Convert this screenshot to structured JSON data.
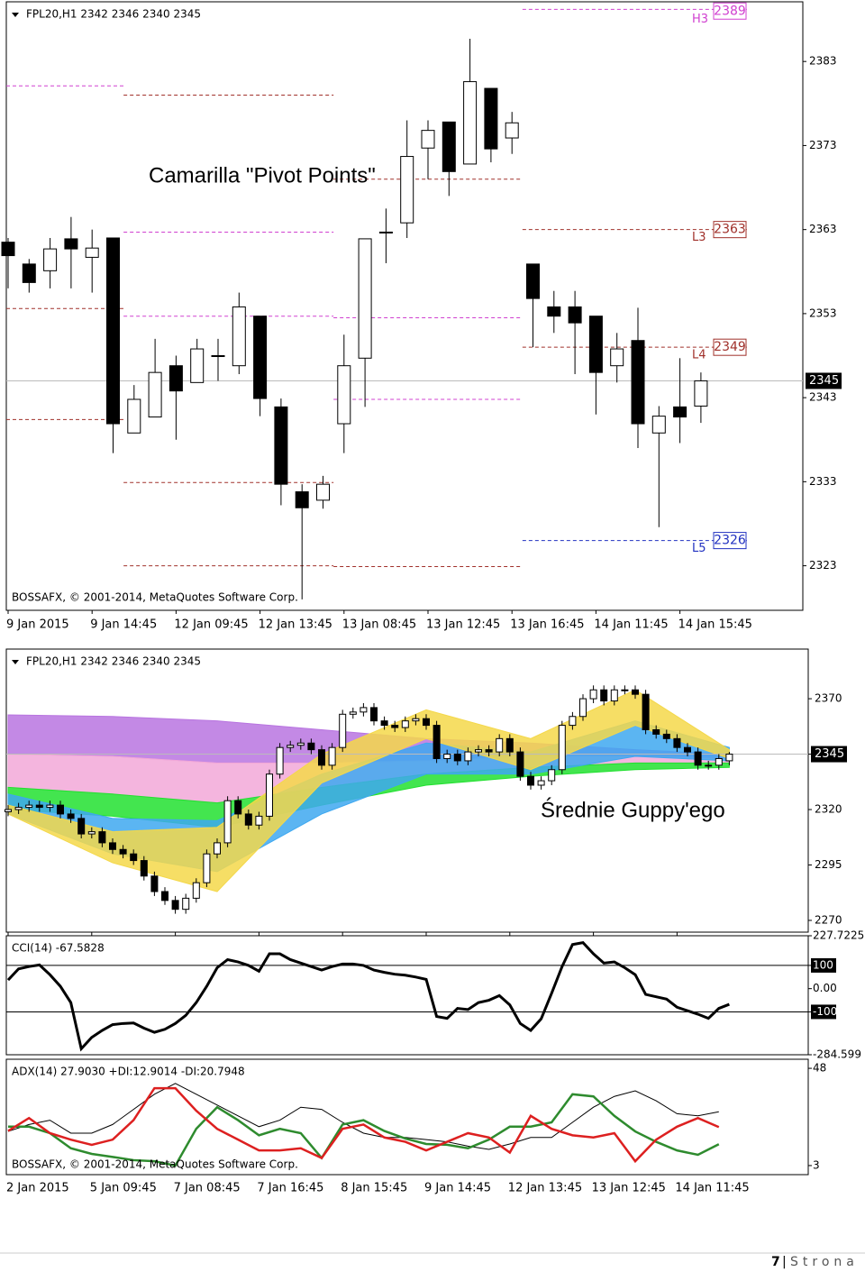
{
  "chart_data": [
    {
      "type": "candlestick",
      "title": "FPL20,H1  2342 2346 2340 2345",
      "annotation": "Camarilla \"Pivot Points\"",
      "copyright": "BOSSAFX, © 2001-2014, MetaQuotes Software Corp.",
      "categories": [
        "9 Jan 2015",
        null,
        null,
        null,
        "9 Jan 14:45",
        null,
        null,
        null,
        "12 Jan 09:45",
        null,
        null,
        null,
        "12 Jan 13:45",
        null,
        null,
        null,
        "13 Jan 08:45",
        null,
        null,
        null,
        "13 Jan 12:45",
        null,
        null,
        null,
        "13 Jan 16:45",
        null,
        null,
        null,
        "14 Jan 11:45",
        null,
        null,
        null,
        "14 Jan 15:45",
        null
      ],
      "open": [
        2361.5,
        2358.9,
        2358.1,
        2361.9,
        2359.7,
        2362,
        2338.8,
        2340.7,
        2346.8,
        2344.8,
        2348,
        2346.8,
        2352.7,
        2341.9,
        2331.8,
        2330.8,
        2339.9,
        2347.7,
        2362.7,
        2363.8,
        2372.7,
        2375.8,
        2370.8,
        2379.8,
        2373.9,
        2358.9,
        2353.8,
        2353.8,
        2352.7,
        2346.8,
        2349.8,
        2338.8,
        2341.9,
        2342
      ],
      "high": [
        2362,
        2359.5,
        2362,
        2364.5,
        2363,
        2362,
        2344.5,
        2350,
        2348,
        2350,
        2350,
        2355.5,
        2352.7,
        2342.9,
        2332.7,
        2333.7,
        2350.5,
        2361.9,
        2365.5,
        2376,
        2376,
        2375.8,
        2385.7,
        2379.8,
        2377,
        2358.9,
        2355.7,
        2355.7,
        2352.7,
        2350.7,
        2353.7,
        2342,
        2347.7,
        2346
      ],
      "low": [
        2356,
        2355.5,
        2356,
        2356,
        2355.5,
        2336.4,
        2338.8,
        2340.7,
        2338,
        2344.8,
        2345,
        2345.8,
        2340.8,
        2330.2,
        2319,
        2329.8,
        2336.4,
        2341.9,
        2359,
        2362,
        2369,
        2367,
        2370.8,
        2371,
        2372,
        2349,
        2350.7,
        2345.8,
        2341,
        2344.8,
        2337,
        2327.6,
        2337.6,
        2340
      ],
      "close": [
        2359.9,
        2356.7,
        2360.7,
        2360.7,
        2360.8,
        2339.9,
        2342.8,
        2346,
        2343.8,
        2348.8,
        2348,
        2353.8,
        2342.9,
        2332.7,
        2329.9,
        2332.7,
        2346.8,
        2361.9,
        2362.7,
        2371.7,
        2374.8,
        2369.9,
        2380.6,
        2372.6,
        2375.7,
        2354.8,
        2352.7,
        2351.9,
        2346,
        2348.8,
        2339.9,
        2340.8,
        2340.7,
        2345
      ],
      "ylim": [
        2317.7,
        2390.1
      ],
      "yticks": [
        2323,
        2333,
        2343,
        2353,
        2363,
        2373,
        2383
      ],
      "last_price": 2345,
      "sessions": [
        0,
        6,
        16,
        25
      ],
      "levels": [
        {
          "color": "#d040d0",
          "values": [
            2380.1,
            2362.7,
            2352.5,
            2389.2
          ]
        },
        {
          "color": "#d040d0",
          "values": [
            null,
            2352.7,
            2342.8,
            null
          ]
        },
        {
          "color": "#a0302a",
          "values": [
            2353.6,
            2379,
            2369,
            2363
          ]
        },
        {
          "color": "#a0302a",
          "values": [
            2340.4,
            2332.9,
            2322.9,
            2349
          ]
        },
        {
          "color": "#a0302a",
          "values": [
            null,
            2323,
            null,
            null
          ]
        },
        {
          "color": "#2030c0",
          "values": [
            null,
            null,
            null,
            2326
          ]
        }
      ],
      "level_labels": [
        {
          "name": "H3",
          "value": 2389,
          "color": "#d040d0"
        },
        {
          "name": "L3",
          "value": 2363,
          "color": "#a0302a"
        },
        {
          "name": "L4",
          "value": 2349,
          "color": "#a0302a"
        },
        {
          "name": "L5",
          "value": 2326,
          "color": "#2030c0"
        }
      ]
    },
    {
      "type": "candlestick",
      "title": "FPL20,H1  2342 2346 2340 2345",
      "annotation": "Średnie Guppy'ego",
      "categories": [
        "2 Jan 2015",
        null,
        null,
        null,
        null,
        null,
        null,
        null,
        "5 Jan 09:45",
        null,
        null,
        null,
        null,
        null,
        null,
        null,
        "7 Jan 08:45",
        null,
        null,
        null,
        null,
        null,
        null,
        null,
        "7 Jan 16:45",
        null,
        null,
        null,
        null,
        null,
        null,
        null,
        "8 Jan 15:45",
        null,
        null,
        null,
        null,
        null,
        null,
        null,
        "9 Jan 14:45",
        null,
        null,
        null,
        null,
        null,
        null,
        null,
        "12 Jan 13:45",
        null,
        null,
        null,
        null,
        null,
        null,
        null,
        "13 Jan 12:45",
        null,
        null,
        null,
        null,
        null,
        null,
        null,
        "14 Jan 11:45",
        null,
        null,
        null,
        null,
        null
      ],
      "open": [
        2319,
        2320,
        2321,
        2322,
        2321,
        2322,
        2318,
        2316,
        2309,
        2310,
        2305,
        2302,
        2300,
        2297,
        2290,
        2283,
        2279,
        2275,
        2280,
        2287,
        2300,
        2305,
        2324,
        2318,
        2313,
        2317,
        2336,
        2348,
        2349,
        2350,
        2347,
        2340,
        2348,
        2363,
        2364,
        2366,
        2360,
        2358,
        2357,
        2360,
        2361,
        2358,
        2343,
        2345,
        2342,
        2346,
        2347,
        2346,
        2352,
        2346,
        2335,
        2331,
        2333,
        2338,
        2358,
        2362,
        2370,
        2374,
        2369,
        2374,
        2374,
        2372,
        2356,
        2354,
        2352,
        2348,
        2346,
        2340,
        2340,
        2342
      ],
      "high": [
        2322,
        2323,
        2324,
        2324,
        2324,
        2324,
        2320,
        2318,
        2312,
        2312,
        2307,
        2304,
        2302,
        2299,
        2292,
        2285,
        2281,
        2282,
        2289,
        2302,
        2307,
        2326,
        2326,
        2320,
        2319,
        2338,
        2350,
        2351,
        2352,
        2352,
        2349,
        2350,
        2365,
        2366,
        2368,
        2368,
        2362,
        2360,
        2362,
        2363,
        2363,
        2360,
        2347,
        2347,
        2348,
        2349,
        2349,
        2354,
        2354,
        2348,
        2337,
        2335,
        2340,
        2360,
        2364,
        2372,
        2376,
        2376,
        2376,
        2376,
        2376,
        2374,
        2358,
        2356,
        2354,
        2350,
        2348,
        2342,
        2345,
        2346
      ],
      "low": [
        2317,
        2318,
        2319,
        2319,
        2319,
        2316,
        2314,
        2307,
        2307,
        2303,
        2300,
        2298,
        2295,
        2288,
        2281,
        2277,
        2273,
        2273,
        2278,
        2285,
        2298,
        2303,
        2316,
        2311,
        2311,
        2315,
        2334,
        2346,
        2347,
        2345,
        2338,
        2338,
        2346,
        2361,
        2362,
        2358,
        2356,
        2355,
        2355,
        2358,
        2356,
        2341,
        2341,
        2340,
        2340,
        2344,
        2344,
        2344,
        2344,
        2333,
        2329,
        2329,
        2331,
        2336,
        2356,
        2360,
        2368,
        2367,
        2367,
        2372,
        2370,
        2354,
        2352,
        2350,
        2346,
        2344,
        2338,
        2338,
        2338,
        2340
      ],
      "close": [
        2320,
        2321,
        2322,
        2321,
        2322,
        2318,
        2316,
        2309,
        2310,
        2305,
        2302,
        2300,
        2297,
        2290,
        2283,
        2279,
        2275,
        2280,
        2287,
        2300,
        2305,
        2324,
        2318,
        2313,
        2317,
        2336,
        2348,
        2349,
        2350,
        2347,
        2340,
        2348,
        2363,
        2364,
        2366,
        2360,
        2358,
        2357,
        2360,
        2361,
        2358,
        2343,
        2345,
        2342,
        2346,
        2347,
        2346,
        2352,
        2346,
        2335,
        2331,
        2333,
        2338,
        2358,
        2362,
        2370,
        2374,
        2369,
        2374,
        2374,
        2372,
        2356,
        2354,
        2352,
        2348,
        2346,
        2340,
        2340,
        2343,
        2345
      ],
      "ylim": [
        2264.7,
        2392.4
      ],
      "yticks": [
        2270,
        2295,
        2320,
        2345,
        2370
      ],
      "last_price": 2345,
      "band_x": [
        0,
        10,
        20,
        30,
        40,
        50,
        60,
        69
      ],
      "bands": [
        {
          "color": "#b874e0",
          "upper": [
            2362.7,
            2362,
            2360,
            2356,
            2352,
            2350,
            2347,
            2345
          ],
          "lower": [
            2345,
            2344,
            2341,
            2341,
            2342,
            2344,
            2344,
            2343
          ]
        },
        {
          "color": "#f2a8d8",
          "upper": [
            2345,
            2344,
            2341,
            2341,
            2342,
            2344,
            2344,
            2343
          ],
          "lower": [
            2330,
            2327,
            2323,
            2330,
            2336,
            2339,
            2341,
            2341
          ]
        },
        {
          "color": "#22e030",
          "upper": [
            2330,
            2327,
            2323,
            2330,
            2336,
            2339,
            2341,
            2341
          ],
          "lower": [
            2320,
            2317,
            2312,
            2322,
            2331,
            2335,
            2338,
            2339
          ]
        },
        {
          "color": "#3ea8f0",
          "upper": [
            2327,
            2316,
            2315,
            2336,
            2350,
            2346,
            2360,
            2348
          ],
          "lower": [
            2318,
            2300,
            2292,
            2318,
            2336,
            2336,
            2344,
            2342
          ]
        },
        {
          "color": "#f4d84a",
          "upper": [
            2322,
            2310,
            2312,
            2345,
            2365,
            2352,
            2374,
            2347
          ],
          "lower": [
            2318,
            2296,
            2283,
            2332,
            2352,
            2338,
            2358,
            2343
          ]
        }
      ]
    },
    {
      "type": "line",
      "title": "CCI(14) -67.5828",
      "color": "#000000",
      "values": [
        37,
        85,
        95,
        102,
        60,
        10,
        -60,
        -259,
        -210,
        -180,
        -155,
        -150,
        -148,
        -170,
        -188,
        -175,
        -150,
        -115,
        -60,
        10,
        90,
        125,
        115,
        100,
        75,
        150,
        150,
        125,
        110,
        95,
        80,
        95,
        106,
        106,
        100,
        80,
        70,
        62,
        58,
        50,
        40,
        -120,
        -128,
        -85,
        -90,
        -60,
        -50,
        -30,
        -70,
        -150,
        -180,
        -130,
        -20,
        95,
        190,
        198,
        150,
        110,
        115,
        90,
        60,
        -25,
        -35,
        -45,
        -80,
        -95,
        -110,
        -128,
        -85,
        -67.5828
      ],
      "ylim": [
        -284.599,
        227.7225
      ],
      "yticks": [
        -284.599,
        -100,
        {
          "value": 0,
          "label": "0.00"
        },
        100,
        227.7225
      ],
      "levels": [
        100,
        -100
      ]
    },
    {
      "type": "line",
      "title": "ADX(14) 27.9030 +DI:12.9014 -DI:20.7948",
      "copyright": "BOSSAFX, © 2001-2014, MetaQuotes Software Corp.",
      "series": [
        {
          "color": "#000000",
          "values": [
            18.8,
            22,
            24,
            18,
            18,
            22,
            29,
            36,
            41,
            36,
            31,
            26,
            21,
            24,
            30,
            29,
            23,
            18,
            16,
            16,
            15,
            14,
            12,
            10.5,
            13,
            16,
            16,
            23,
            30,
            35,
            37.6,
            33,
            27,
            26,
            27.903
          ]
        },
        {
          "color": "#2e8b2e",
          "values": [
            21,
            21,
            18,
            11,
            8.4,
            7,
            5.5,
            5,
            3,
            20,
            30,
            24,
            17,
            20,
            18,
            6.5,
            22,
            24,
            19,
            15.5,
            13,
            12.6,
            11,
            15,
            21,
            21,
            23,
            36,
            35,
            26,
            18.8,
            14,
            10,
            8,
            12.9014
          ]
        },
        {
          "color": "#dd2020",
          "values": [
            19,
            25,
            18,
            15,
            12.6,
            15,
            24,
            38.8,
            38.8,
            28.4,
            20,
            15,
            10,
            10,
            11,
            6.5,
            20,
            22,
            16,
            14,
            10,
            14,
            18,
            16,
            9,
            26,
            20,
            17,
            16,
            18,
            5,
            15,
            21,
            25,
            20.7948
          ]
        }
      ],
      "ylim": [
        -1.2,
        52.2
      ],
      "yticks": [
        3,
        48
      ]
    }
  ],
  "footer": {
    "page": "7",
    "separator": "|",
    "label": "Strona"
  }
}
